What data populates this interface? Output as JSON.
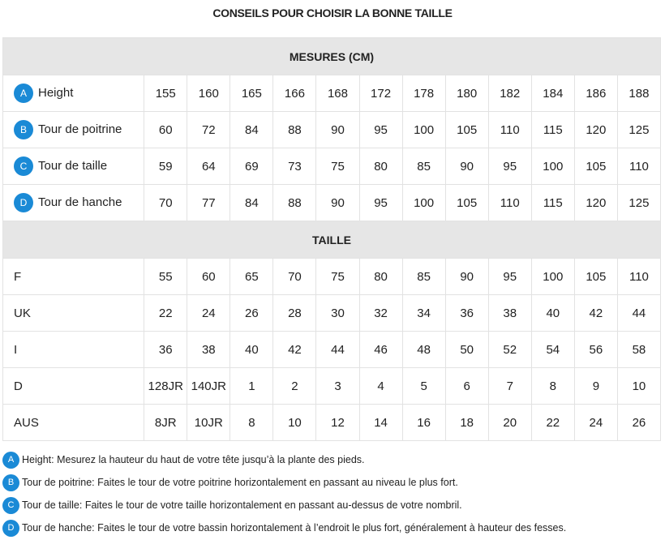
{
  "title": "CONSEILS POUR CHOISIR LA BONNE TAILLE",
  "colors": {
    "badge": "#1a8ad6",
    "section_bg": "#e6e6e6"
  },
  "sections": [
    {
      "header": "MESURES (CM)",
      "rows": [
        {
          "badge": "A",
          "label": "Height",
          "values": [
            "155",
            "160",
            "165",
            "166",
            "168",
            "172",
            "178",
            "180",
            "182",
            "184",
            "186",
            "188"
          ]
        },
        {
          "badge": "B",
          "label": "Tour de poitrine",
          "values": [
            "60",
            "72",
            "84",
            "88",
            "90",
            "95",
            "100",
            "105",
            "110",
            "115",
            "120",
            "125"
          ]
        },
        {
          "badge": "C",
          "label": "Tour de taille",
          "values": [
            "59",
            "64",
            "69",
            "73",
            "75",
            "80",
            "85",
            "90",
            "95",
            "100",
            "105",
            "110"
          ]
        },
        {
          "badge": "D",
          "label": "Tour de hanche",
          "values": [
            "70",
            "77",
            "84",
            "88",
            "90",
            "95",
            "100",
            "105",
            "110",
            "115",
            "120",
            "125"
          ]
        }
      ]
    },
    {
      "header": "TAILLE",
      "rows": [
        {
          "label": "F",
          "values": [
            "55",
            "60",
            "65",
            "70",
            "75",
            "80",
            "85",
            "90",
            "95",
            "100",
            "105",
            "110"
          ]
        },
        {
          "label": "UK",
          "values": [
            "22",
            "24",
            "26",
            "28",
            "30",
            "32",
            "34",
            "36",
            "38",
            "40",
            "42",
            "44"
          ]
        },
        {
          "label": "I",
          "values": [
            "36",
            "38",
            "40",
            "42",
            "44",
            "46",
            "48",
            "50",
            "52",
            "54",
            "56",
            "58"
          ]
        },
        {
          "label": "D",
          "values": [
            "128JR",
            "140JR",
            "1",
            "2",
            "3",
            "4",
            "5",
            "6",
            "7",
            "8",
            "9",
            "10"
          ]
        },
        {
          "label": "AUS",
          "values": [
            "8JR",
            "10JR",
            "8",
            "10",
            "12",
            "14",
            "16",
            "18",
            "20",
            "22",
            "24",
            "26"
          ]
        }
      ]
    }
  ],
  "notes": [
    {
      "badge": "A",
      "text": "Height: Mesurez la hauteur du haut de votre tête jusqu’à la plante des pieds."
    },
    {
      "badge": "B",
      "text": "Tour de poitrine: Faites le tour de votre poitrine horizontalement en passant au niveau le plus fort."
    },
    {
      "badge": "C",
      "text": "Tour de taille: Faites le tour de votre taille horizontalement en passant au-dessus de votre nombril."
    },
    {
      "badge": "D",
      "text": "Tour de hanche: Faites le tour de votre bassin horizontalement à l’endroit le plus fort, généralement à hauteur des fesses."
    }
  ]
}
